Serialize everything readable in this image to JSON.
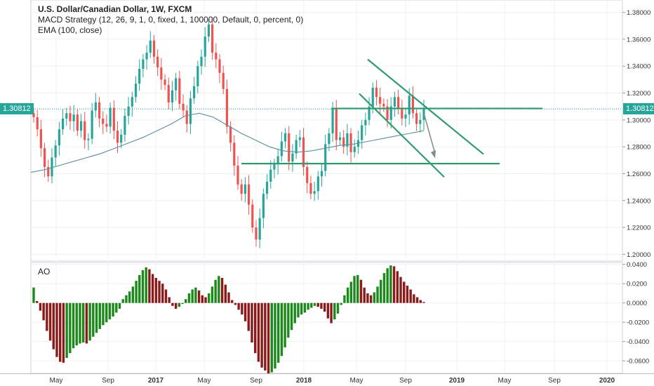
{
  "header": {
    "symbol_line": "U.S. Dollar/Canadian Dollar, 1W, FXCM",
    "strategy_line": "MACD Strategy (12, 26, 9, 1, 0, fixed, 1, 100000, Default, 0, percent, 0)",
    "ema_line": "EMA (100, close)"
  },
  "last_price": "1.30812",
  "colors": {
    "up": "#26a69a",
    "down": "#ef5350",
    "ao_up": "#1b8a1b",
    "ao_down": "#8b1a1a",
    "ema": "#5a8f9f",
    "lines": "#2e9a6e"
  },
  "chart_data": [
    {
      "type": "candlestick",
      "title": "U.S. Dollar/Canadian Dollar, 1W, FXCM",
      "x_tick_labels": [
        "May",
        "Sep",
        "2017",
        "May",
        "Sep",
        "2018",
        "May",
        "Sep",
        "2019",
        "May",
        "Sep",
        "2020"
      ],
      "y_tick_labels": [
        "1.38000",
        "1.36000",
        "1.34000",
        "1.32000",
        "1.30000",
        "1.28000",
        "1.26000",
        "1.24000",
        "1.22000",
        "1.20000"
      ],
      "ylim": [
        1.195,
        1.385
      ],
      "weekly_closes_approx": [
        1.302,
        1.293,
        1.279,
        1.265,
        1.258,
        1.272,
        1.281,
        1.293,
        1.301,
        1.305,
        1.299,
        1.304,
        1.292,
        1.299,
        1.285,
        1.286,
        1.307,
        1.313,
        1.301,
        1.297,
        1.295,
        1.309,
        1.292,
        1.283,
        1.289,
        1.303,
        1.31,
        1.317,
        1.327,
        1.338,
        1.345,
        1.35,
        1.359,
        1.347,
        1.339,
        1.33,
        1.326,
        1.313,
        1.322,
        1.331,
        1.312,
        1.307,
        1.297,
        1.316,
        1.325,
        1.34,
        1.347,
        1.362,
        1.371,
        1.35,
        1.345,
        1.335,
        1.323,
        1.295,
        1.283,
        1.266,
        1.252,
        1.245,
        1.252,
        1.237,
        1.22,
        1.211,
        1.227,
        1.245,
        1.254,
        1.263,
        1.267,
        1.273,
        1.284,
        1.29,
        1.269,
        1.275,
        1.285,
        1.287,
        1.265,
        1.253,
        1.245,
        1.247,
        1.258,
        1.262,
        1.282,
        1.29,
        1.308,
        1.285,
        1.287,
        1.28,
        1.29,
        1.276,
        1.28,
        1.285,
        1.296,
        1.3,
        1.31,
        1.324,
        1.317,
        1.312,
        1.31,
        1.3,
        1.31,
        1.317,
        1.308,
        1.301,
        1.304,
        1.318,
        1.305,
        1.297,
        1.3,
        1.308
      ],
      "ema_100_approx": [
        1.261,
        1.263,
        1.266,
        1.269,
        1.272,
        1.275,
        1.279,
        1.283,
        1.287,
        1.292,
        1.297,
        1.303,
        1.305,
        1.302,
        1.296,
        1.29,
        1.285,
        1.28,
        1.277,
        1.276,
        1.277,
        1.279,
        1.281,
        1.282,
        1.284,
        1.286,
        1.288,
        1.29,
        1.292
      ],
      "annotations": {
        "horizontal_levels": [
          1.3085,
          1.2675
        ],
        "channel_upper": [
          [
            -0.4,
            1.345
          ],
          [
            1.55,
            1.275
          ]
        ],
        "channel_lower": [
          [
            -0.4,
            1.319
          ],
          [
            1.5,
            1.258
          ]
        ]
      }
    },
    {
      "type": "bar",
      "title": "AO",
      "y_tick_labels": [
        "0.0400",
        "0.0200",
        "0.0000",
        "-0.0200",
        "-0.0400",
        "-0.0600"
      ],
      "ylim": [
        -0.073,
        0.042
      ],
      "values": [
        0.016,
        0.002,
        -0.008,
        -0.018,
        -0.029,
        -0.039,
        -0.048,
        -0.056,
        -0.061,
        -0.062,
        -0.057,
        -0.052,
        -0.047,
        -0.044,
        -0.042,
        -0.041,
        -0.042,
        -0.039,
        -0.035,
        -0.031,
        -0.027,
        -0.023,
        -0.02,
        -0.017,
        -0.014,
        -0.01,
        -0.006,
        0.004,
        0.008,
        0.012,
        0.017,
        0.023,
        0.029,
        0.034,
        0.037,
        0.035,
        0.03,
        0.026,
        0.023,
        0.02,
        0.014,
        0.006,
        -0.003,
        -0.006,
        -0.004,
        -0.001,
        0.004,
        0.01,
        0.014,
        0.016,
        0.013,
        0.008,
        0.006,
        0.01,
        0.017,
        0.024,
        0.028,
        0.026,
        0.019,
        0.011,
        0.003,
        -0.002,
        -0.007,
        -0.012,
        -0.019,
        -0.029,
        -0.041,
        -0.052,
        -0.061,
        -0.067,
        -0.07,
        -0.073,
        -0.072,
        -0.068,
        -0.062,
        -0.055,
        -0.046,
        -0.036,
        -0.028,
        -0.021,
        -0.015,
        -0.012,
        -0.01,
        -0.007,
        -0.005,
        -0.003,
        -0.004,
        -0.006,
        -0.009,
        -0.016,
        -0.021,
        -0.017,
        -0.011,
        -0.002,
        0.008,
        0.016,
        0.022,
        0.028,
        0.029,
        0.024,
        0.016,
        0.01,
        0.008,
        0.011,
        0.017,
        0.024,
        0.031,
        0.036,
        0.039,
        0.038,
        0.033,
        0.027,
        0.022,
        0.018,
        0.014,
        0.009,
        0.006,
        0.003,
        0.001
      ]
    }
  ]
}
